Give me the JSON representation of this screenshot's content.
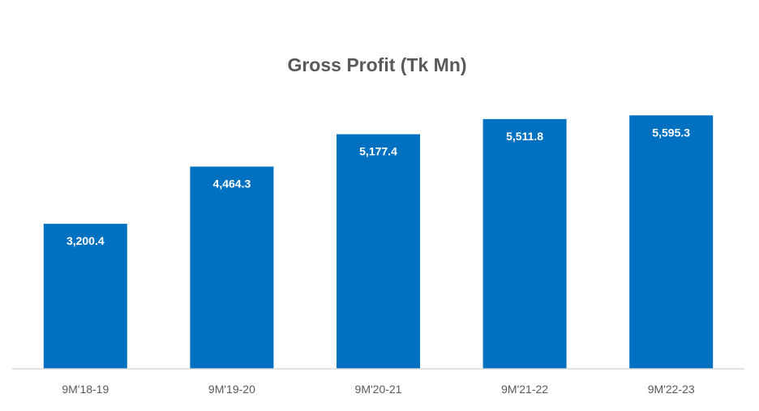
{
  "chart_data": {
    "type": "bar",
    "title": "Gross Profit (Tk Mn)",
    "categories": [
      "9M'18-19",
      "9M'19-20",
      "9M'20-21",
      "9M'21-22",
      "9M'22-23"
    ],
    "values": [
      3200.4,
      4464.3,
      5177.4,
      5511.8,
      5595.3
    ],
    "value_labels": [
      "3,200.4",
      "4,464.3",
      "5,177.4",
      "5,511.8",
      "5,595.3"
    ],
    "xlabel": "",
    "ylabel": "",
    "ylim": [
      0,
      5600
    ],
    "grid": false,
    "legend": "none",
    "colors": {
      "bar": "#0070C0",
      "axis": "#D9D9D9",
      "title": "#595959",
      "tick_text": "#595959",
      "data_label": "#FFFFFF"
    }
  }
}
